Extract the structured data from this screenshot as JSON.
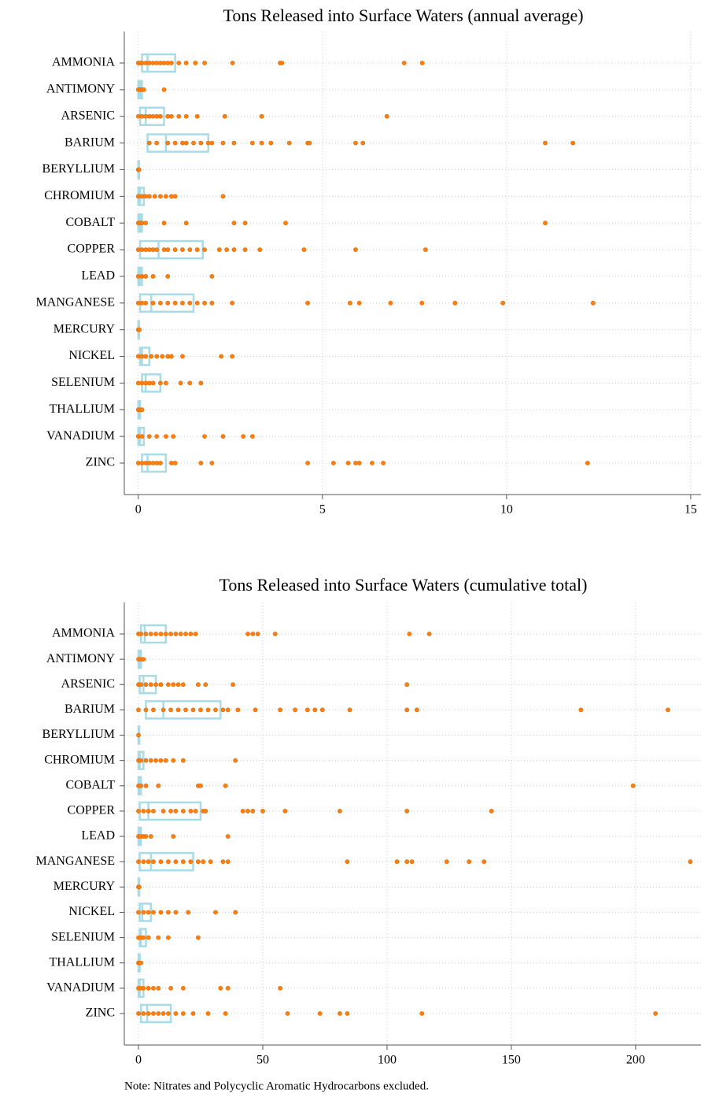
{
  "chart_data": [
    {
      "type": "box",
      "orientation": "horizontal",
      "title": "Tons Released into Surface Waters (annual average)",
      "categories": [
        "AMMONIA",
        "ANTIMONY",
        "ARSENIC",
        "BARIUM",
        "BERYLLIUM",
        "CHROMIUM",
        "COBALT",
        "COPPER",
        "LEAD",
        "MANGANESE",
        "MERCURY",
        "NICKEL",
        "SELENIUM",
        "THALLIUM",
        "VANADIUM",
        "ZINC"
      ],
      "box_color": "#a8dbe6",
      "point_color": "#ff7f0e",
      "grid": true,
      "xlim": [
        -0.38,
        15.28
      ],
      "xticks": [
        0,
        5,
        10,
        15
      ],
      "boxes": [
        {
          "q1": 0.1,
          "median": 0.25,
          "q3": 1.0,
          "points": [
            0,
            0.05,
            0.1,
            0.2,
            0.3,
            0.4,
            0.5,
            0.6,
            0.7,
            0.8,
            0.9,
            1.1,
            1.3,
            1.55,
            1.8,
            2.56,
            3.85,
            3.9,
            7.22,
            7.71
          ]
        },
        {
          "q1": 0,
          "median": 0.05,
          "q3": 0.1,
          "points": [
            0,
            0.05,
            0.1,
            0.15,
            0.7
          ]
        },
        {
          "q1": 0.05,
          "median": 0.2,
          "q3": 0.7,
          "points": [
            0,
            0.1,
            0.2,
            0.3,
            0.4,
            0.5,
            0.6,
            0.8,
            0.9,
            1.1,
            1.3,
            1.6,
            2.35,
            3.35,
            6.75
          ]
        },
        {
          "q1": 0.25,
          "median": 0.75,
          "q3": 1.9,
          "points": [
            0.3,
            0.5,
            0.8,
            1.0,
            1.2,
            1.3,
            1.5,
            1.7,
            1.9,
            2.0,
            2.3,
            2.6,
            3.1,
            3.35,
            3.6,
            4.1,
            4.6,
            4.65,
            5.9,
            6.1,
            11.05,
            11.8
          ]
        },
        {
          "q1": 0,
          "median": 0.01,
          "q3": 0.02,
          "points": [
            0,
            0.02
          ]
        },
        {
          "q1": 0,
          "median": 0.05,
          "q3": 0.15,
          "points": [
            0,
            0.1,
            0.2,
            0.3,
            0.45,
            0.6,
            0.75,
            0.9,
            1.0,
            2.3
          ]
        },
        {
          "q1": 0,
          "median": 0.05,
          "q3": 0.1,
          "points": [
            0,
            0.05,
            0.1,
            0.2,
            0.7,
            1.3,
            2.6,
            2.9,
            4.0,
            11.05
          ]
        },
        {
          "q1": 0.05,
          "median": 0.55,
          "q3": 1.75,
          "points": [
            0,
            0.1,
            0.2,
            0.3,
            0.4,
            0.5,
            0.7,
            0.8,
            1.0,
            1.2,
            1.4,
            1.6,
            1.8,
            2.2,
            2.4,
            2.6,
            2.9,
            3.3,
            4.5,
            5.9,
            7.8
          ]
        },
        {
          "q1": 0,
          "median": 0.05,
          "q3": 0.1,
          "points": [
            0,
            0.1,
            0.2,
            0.4,
            0.8,
            2.0
          ]
        },
        {
          "q1": 0.05,
          "median": 0.35,
          "q3": 1.5,
          "points": [
            0,
            0.1,
            0.2,
            0.4,
            0.6,
            0.8,
            1.0,
            1.2,
            1.4,
            1.6,
            1.8,
            2.0,
            2.55,
            4.6,
            5.75,
            6.0,
            6.85,
            7.7,
            8.6,
            9.9,
            12.35
          ]
        },
        {
          "q1": 0,
          "median": 0.01,
          "q3": 0.02,
          "points": [
            0,
            0.03
          ]
        },
        {
          "q1": 0.05,
          "median": 0.1,
          "q3": 0.3,
          "points": [
            0,
            0.1,
            0.2,
            0.35,
            0.5,
            0.65,
            0.8,
            0.9,
            1.2,
            2.25,
            2.55
          ]
        },
        {
          "q1": 0.1,
          "median": 0.2,
          "q3": 0.6,
          "points": [
            0,
            0.1,
            0.2,
            0.3,
            0.4,
            0.6,
            0.75,
            1.15,
            1.4,
            1.7
          ]
        },
        {
          "q1": 0,
          "median": 0.02,
          "q3": 0.05,
          "points": [
            0,
            0.05,
            0.1
          ]
        },
        {
          "q1": 0,
          "median": 0.05,
          "q3": 0.15,
          "points": [
            0,
            0.1,
            0.3,
            0.5,
            0.75,
            0.95,
            1.8,
            2.3,
            2.85,
            3.1
          ]
        },
        {
          "q1": 0.1,
          "median": 0.25,
          "q3": 0.75,
          "points": [
            0,
            0.1,
            0.2,
            0.3,
            0.4,
            0.5,
            0.6,
            0.9,
            1.0,
            1.7,
            2.0,
            4.6,
            5.3,
            5.7,
            5.9,
            6.0,
            6.35,
            6.65,
            12.2
          ]
        }
      ]
    },
    {
      "type": "box",
      "orientation": "horizontal",
      "title": "Tons Released into Surface Waters (cumulative total)",
      "categories": [
        "AMMONIA",
        "ANTIMONY",
        "ARSENIC",
        "BARIUM",
        "BERYLLIUM",
        "CHROMIUM",
        "COBALT",
        "COPPER",
        "LEAD",
        "MANGANESE",
        "MERCURY",
        "NICKEL",
        "SELENIUM",
        "THALLIUM",
        "VANADIUM",
        "ZINC"
      ],
      "box_color": "#a8dbe6",
      "point_color": "#ff7f0e",
      "grid": true,
      "xlim": [
        -5.7,
        226.3
      ],
      "xticks": [
        0,
        50,
        100,
        150,
        200
      ],
      "boxes": [
        {
          "q1": 1,
          "median": 2.5,
          "q3": 11,
          "points": [
            0,
            1,
            3,
            5,
            7,
            9,
            11,
            13,
            15,
            17,
            19,
            21,
            23,
            44,
            46,
            48,
            55,
            109,
            117
          ]
        },
        {
          "q1": 0,
          "median": 0.5,
          "q3": 1,
          "points": [
            0,
            1,
            2
          ]
        },
        {
          "q1": 0.5,
          "median": 2,
          "q3": 7,
          "points": [
            0,
            1,
            3,
            5,
            7,
            9,
            12,
            14,
            16,
            18,
            24,
            27,
            38,
            108
          ]
        },
        {
          "q1": 3,
          "median": 10,
          "q3": 33,
          "points": [
            0,
            3,
            6,
            10,
            13,
            16,
            19,
            22,
            25,
            28,
            31,
            34,
            36,
            40,
            47,
            57,
            63,
            68,
            71,
            74,
            85,
            108,
            112,
            178,
            213
          ]
        },
        {
          "q1": 0,
          "median": 0.1,
          "q3": 0.3,
          "points": [
            0
          ]
        },
        {
          "q1": 0,
          "median": 0.5,
          "q3": 2,
          "points": [
            0,
            1,
            3,
            5,
            7,
            9,
            11,
            14,
            18,
            39
          ]
        },
        {
          "q1": 0,
          "median": 0.5,
          "q3": 1,
          "points": [
            0,
            1,
            3,
            8,
            24,
            25,
            35,
            199
          ]
        },
        {
          "q1": 0.5,
          "median": 4,
          "q3": 25,
          "points": [
            0,
            2,
            4,
            6,
            10,
            13,
            15,
            18,
            21,
            23,
            26,
            27,
            42,
            44,
            46,
            50,
            59,
            81,
            108,
            142
          ]
        },
        {
          "q1": 0,
          "median": 0.5,
          "q3": 1,
          "points": [
            0,
            1,
            2,
            3,
            5,
            14,
            36
          ]
        },
        {
          "q1": 0.5,
          "median": 5,
          "q3": 22,
          "points": [
            0,
            2,
            4,
            6,
            9,
            12,
            15,
            18,
            21,
            24,
            26,
            29,
            34,
            36,
            84,
            104,
            108,
            110,
            124,
            133,
            139,
            222
          ]
        },
        {
          "q1": 0,
          "median": 0.1,
          "q3": 0.2,
          "points": [
            0,
            0.3
          ]
        },
        {
          "q1": 0.5,
          "median": 1.5,
          "q3": 5,
          "points": [
            0,
            2,
            4,
            6,
            9,
            12,
            15,
            20,
            31,
            39
          ]
        },
        {
          "q1": 0.5,
          "median": 1,
          "q3": 3,
          "points": [
            0,
            1,
            2,
            4,
            8,
            12,
            24
          ]
        },
        {
          "q1": 0,
          "median": 0.2,
          "q3": 0.5,
          "points": [
            0,
            0.5,
            1
          ]
        },
        {
          "q1": 0,
          "median": 0.5,
          "q3": 2,
          "points": [
            0,
            1,
            2,
            4,
            6,
            8,
            13,
            18,
            33,
            36,
            57
          ]
        },
        {
          "q1": 1,
          "median": 3.5,
          "q3": 13,
          "points": [
            0,
            2,
            4,
            6,
            8,
            10,
            12,
            15,
            18,
            22,
            28,
            35,
            60,
            73,
            81,
            84,
            114,
            208
          ]
        }
      ]
    }
  ],
  "note": "Note: Nitrates and Polycyclic Aromatic Hydrocarbons excluded."
}
